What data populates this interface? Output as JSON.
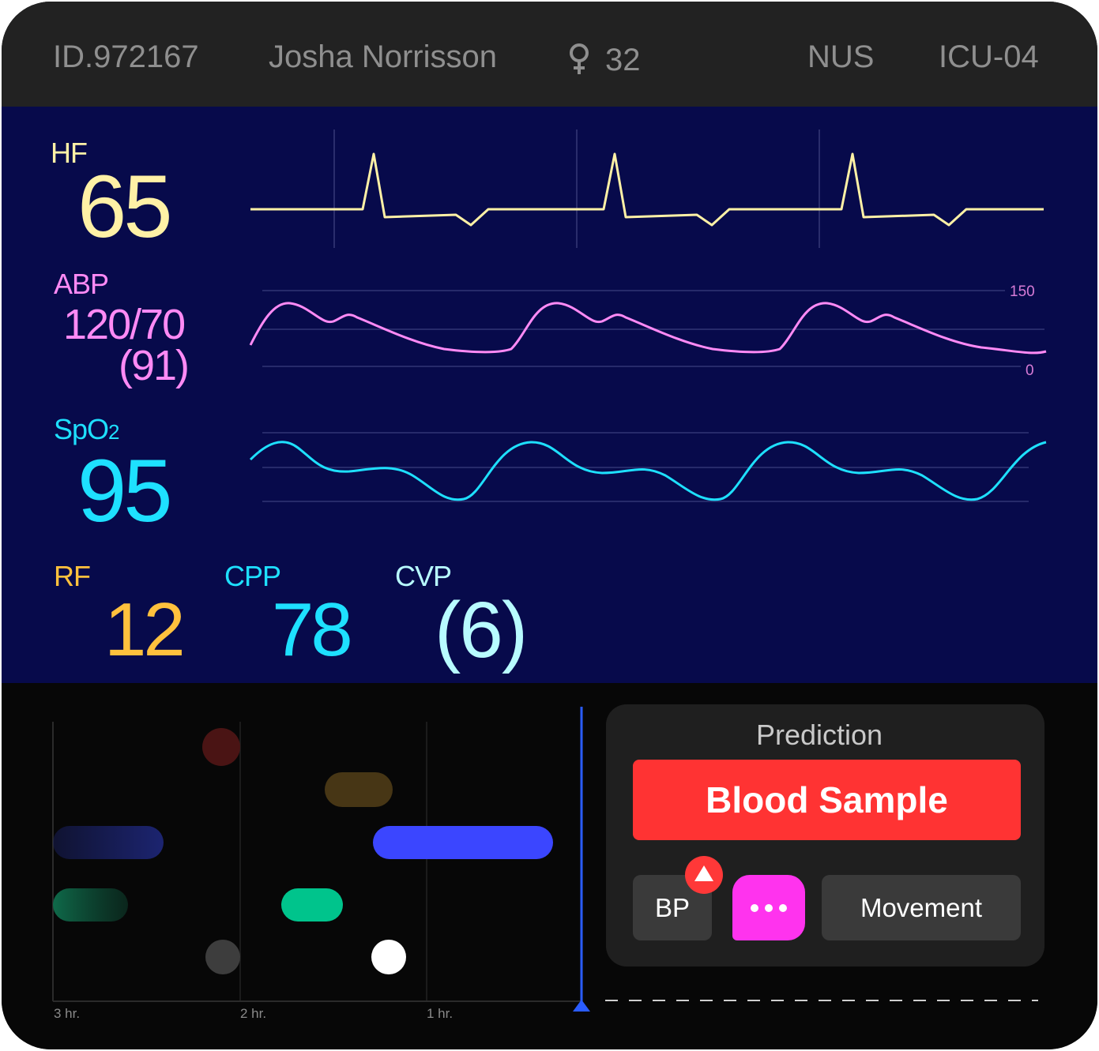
{
  "header": {
    "patient_id": "ID.972167",
    "patient_name": "Josha Norrisson",
    "gender_icon": "female-icon",
    "age": "32",
    "facility": "NUS",
    "unit": "ICU-04"
  },
  "vitals": {
    "hf": {
      "label": "HF",
      "value": "65",
      "color": "#fff1a6"
    },
    "abp": {
      "label": "ABP",
      "value": "120/70",
      "mean": "(91)",
      "scale_max": "150",
      "scale_min": "0",
      "color": "#ff8af5"
    },
    "spo2": {
      "label_main": "SpO",
      "label_sub": "2",
      "value": "95",
      "color": "#1ee0ff"
    },
    "rf": {
      "label": "RF",
      "value": "12",
      "color": "#ffc13d"
    },
    "cpp": {
      "label": "CPP",
      "value": "78",
      "color": "#1ee0ff"
    },
    "cvp": {
      "label": "CVP",
      "value": "(6)",
      "color": "#b8fbff"
    }
  },
  "timeline": {
    "ticks": [
      "3 hr.",
      "2 hr.",
      "1 hr."
    ],
    "colors": {
      "red": "#4a1414",
      "olive": "#473615",
      "blue": "#3b46ff",
      "green": "#00c48c",
      "gray": "#3d3d3d",
      "white": "#ffffff",
      "cursor": "#2a5cff"
    }
  },
  "prediction": {
    "title": "Prediction",
    "primary": "Blood Sample",
    "chips": {
      "bp": "BP",
      "more_icon": "more-dots-icon",
      "alert_icon": "alert-up-icon",
      "movement": "Movement"
    }
  }
}
